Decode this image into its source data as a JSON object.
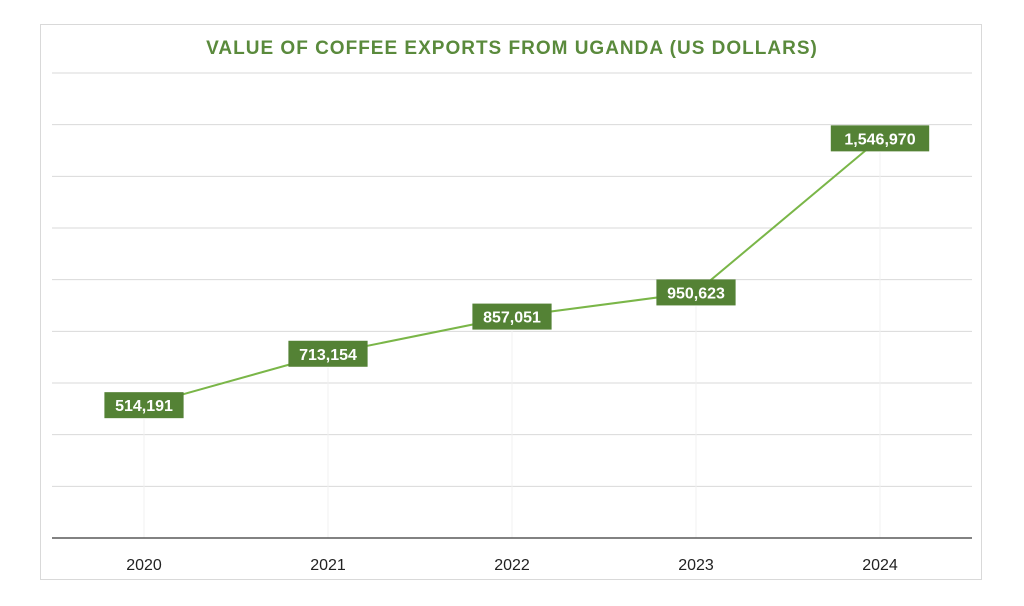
{
  "chart_data": {
    "type": "line",
    "title": "VALUE OF COFFEE EXPORTS FROM UGANDA (US DOLLARS)",
    "categories": [
      "2020",
      "2021",
      "2022",
      "2023",
      "2024"
    ],
    "series": [
      {
        "values": [
          514191,
          713154,
          857051,
          950623,
          1546970
        ],
        "data_labels": [
          "514,191",
          "713,154",
          "857,051",
          "950,623",
          "1,546,970"
        ]
      }
    ],
    "xlabel": "",
    "ylabel": "",
    "ylim": [
      0,
      1800000
    ],
    "grid": true,
    "legend": "none",
    "colors": {
      "title": "#5a8a3c",
      "line": "#7ab648",
      "label_bg": "#548235",
      "grid": "#d9d9d9",
      "axis": "#595959"
    }
  }
}
